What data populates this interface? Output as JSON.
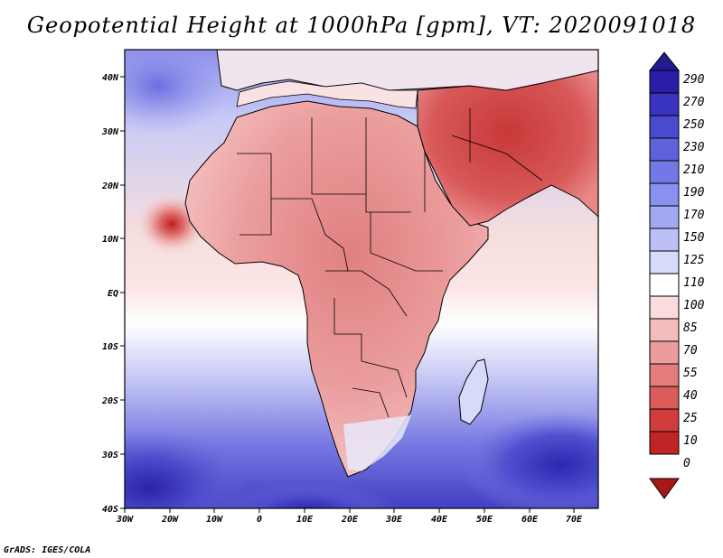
{
  "title": "Geopotential Height at 1000hPa [gpm], VT: 2020091018",
  "credit": "GrADS: IGES/COLA",
  "map": {
    "variable": "Geopotential Height",
    "level": "1000hPa",
    "units": "gpm",
    "valid_time": "2020091018",
    "lon_range": [
      -30,
      77
    ],
    "lat_range": [
      -40,
      45
    ],
    "lon_ticks": [
      "30W",
      "20W",
      "10W",
      "0",
      "10E",
      "20E",
      "30E",
      "40E",
      "50E",
      "60E",
      "70E"
    ],
    "lat_ticks": [
      "40N",
      "30N",
      "20N",
      "10N",
      "EQ",
      "10S",
      "20S",
      "30S",
      "40S"
    ]
  },
  "colorbar": {
    "levels": [
      "290",
      "270",
      "250",
      "230",
      "210",
      "190",
      "170",
      "150",
      "125",
      "110",
      "100",
      "85",
      "70",
      "55",
      "40",
      "25",
      "10",
      "0"
    ],
    "colors": [
      "#2a1ea8",
      "#3a32c0",
      "#4a4ad0",
      "#5e60dc",
      "#7478e6",
      "#8a90ee",
      "#a2a8f2",
      "#bcc0f6",
      "#d8dafa",
      "#ffffff",
      "#fadcdc",
      "#f4bcbc",
      "#ec9c9c",
      "#e47c7c",
      "#dc5c5c",
      "#d03c3c",
      "#c02424"
    ],
    "arrow_top": "#231a90",
    "arrow_bottom": "#a81818"
  }
}
